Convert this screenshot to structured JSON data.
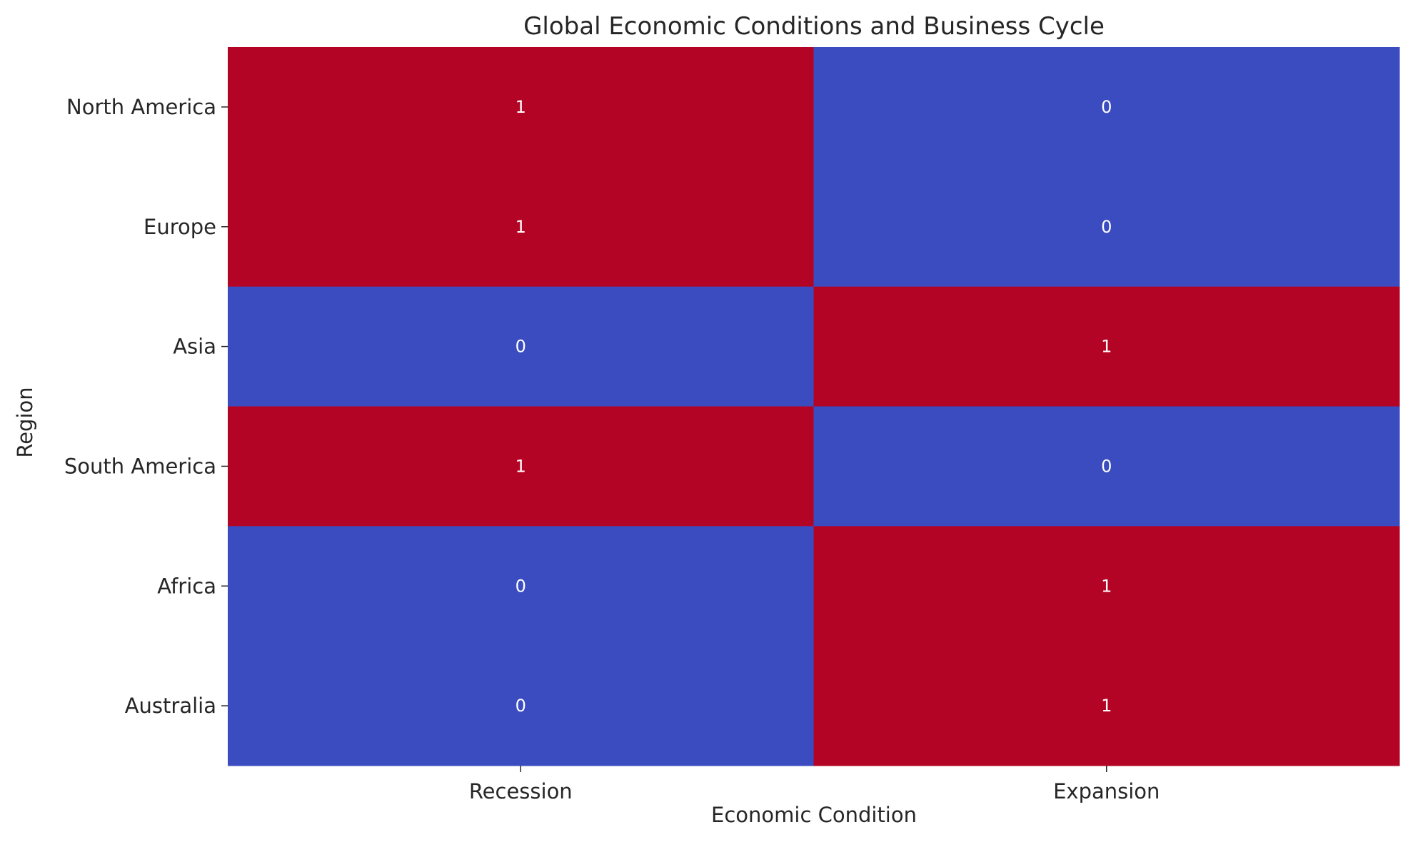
{
  "chart_data": {
    "type": "heatmap",
    "title": "Global Economic Conditions and Business Cycle",
    "xlabel": "Economic Condition",
    "ylabel": "Region",
    "x_categories": [
      "Recession",
      "Expansion"
    ],
    "y_categories": [
      "North America",
      "Europe",
      "Asia",
      "South America",
      "Africa",
      "Australia"
    ],
    "values": [
      [
        1,
        0
      ],
      [
        1,
        0
      ],
      [
        0,
        1
      ],
      [
        1,
        0
      ],
      [
        0,
        1
      ],
      [
        0,
        1
      ]
    ],
    "value_range": [
      0,
      1
    ],
    "colors": {
      "low": "#3b4cc0",
      "high": "#b40426"
    },
    "annotations": true,
    "colorbar": false
  }
}
